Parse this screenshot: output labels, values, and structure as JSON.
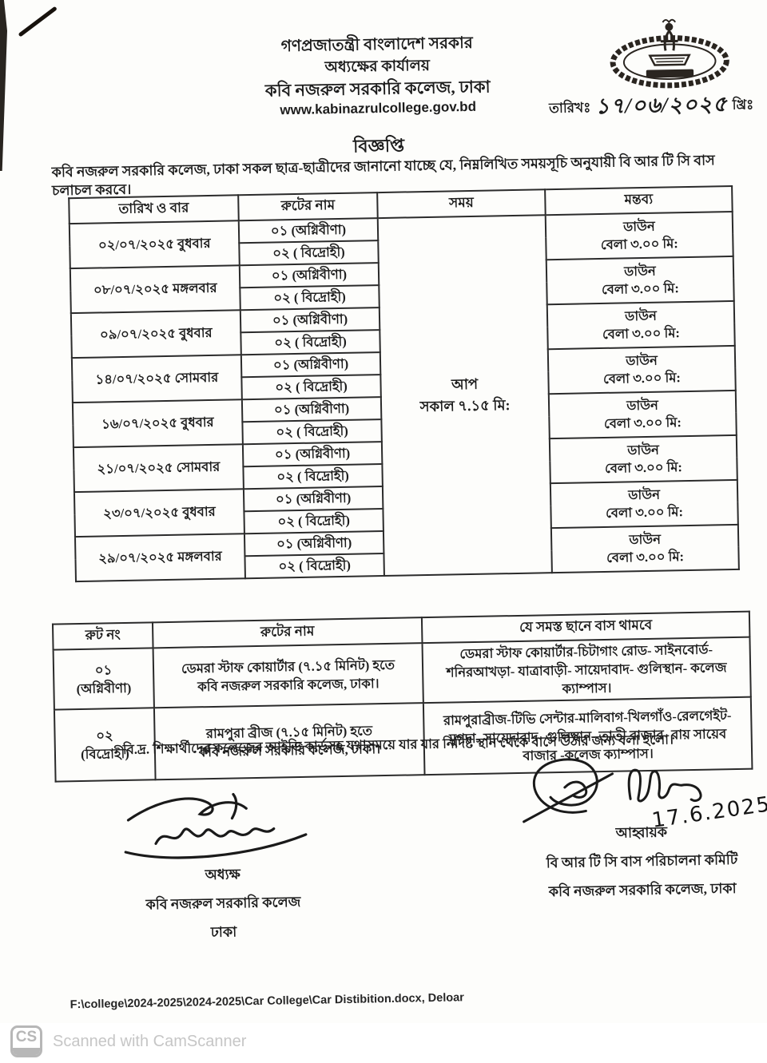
{
  "header": {
    "line1": "গণপ্রজাতন্ত্রী বাংলাদেশ সরকার",
    "line2": "অধ্যক্ষের কার্যালয়",
    "line3": "কবি নজরুল সরকারি কলেজ, ঢাকা",
    "website": "www.kabinazrulcollege.gov.bd",
    "emblem": "college-seal",
    "date_label": "তারিখঃ",
    "date_value": "১৭/০৬/২০২৫",
    "date_suffix": "খ্রিঃ"
  },
  "notice": {
    "title": "বিজ্ঞপ্তি",
    "intro": "কবি নজরুল সরকারি কলেজ, ঢাকা সকল ছাত্র-ছাত্রীদের জানানো যাচ্ছে যে, নিম্নলিখিত সময়সূচি অনুযায়ী বি আর টি সি বাস চলাচল করবে।"
  },
  "schedule_table": {
    "headers": [
      "তারিখ ও বার",
      "রুটের নাম",
      "সময়",
      "মন্তব্য"
    ],
    "time_lines": [
      "আপ",
      "সকাল ৭.১৫ মি:"
    ],
    "rows": [
      {
        "date": "০২/০৭/২০২৫ বুধবার",
        "routes": [
          "০১ (অগ্নিবীণা)",
          "০২ ( বিদ্রোহী)"
        ],
        "remark_lines": [
          "ডাউন",
          "বেলা ৩.০০ মি:"
        ]
      },
      {
        "date": "০৮/০৭/২০২৫ মঙ্গলবার",
        "routes": [
          "০১ (অগ্নিবীণা)",
          "০২ ( বিদ্রোহী)"
        ],
        "remark_lines": [
          "ডাউন",
          "বেলা ৩.০০ মি:"
        ]
      },
      {
        "date": "০৯/০৭/২০২৫ বুধবার",
        "routes": [
          "০১ (অগ্নিবীণা)",
          "০২ ( বিদ্রোহী)"
        ],
        "remark_lines": [
          "ডাউন",
          "বেলা ৩.০০ মি:"
        ]
      },
      {
        "date": "১৪/০৭/২০২৫ সোমবার",
        "routes": [
          "০১ (অগ্নিবীণা)",
          "০২ ( বিদ্রোহী)"
        ],
        "remark_lines": [
          "ডাউন",
          "বেলা ৩.০০ মি:"
        ]
      },
      {
        "date": "১৬/০৭/২০২৫ বুধবার",
        "routes": [
          "০১ (অগ্নিবীণা)",
          "০২ ( বিদ্রোহী)"
        ],
        "remark_lines": [
          "ডাউন",
          "বেলা ৩.০০ মি:"
        ]
      },
      {
        "date": "২১/০৭/২০২৫ সোমবার",
        "routes": [
          "০১ (অগ্নিবীণা)",
          "০২ ( বিদ্রোহী)"
        ],
        "remark_lines": [
          "ডাউন",
          "বেলা ৩.০০ মি:"
        ]
      },
      {
        "date": "২৩/০৭/২০২৫ বুধবার",
        "routes": [
          "০১ (অগ্নিবীণা)",
          "০২ ( বিদ্রোহী)"
        ],
        "remark_lines": [
          "ডাউন",
          "বেলা ৩.০০ মি:"
        ]
      },
      {
        "date": "২৯/০৭/২০২৫ মঙ্গলবার",
        "routes": [
          "০১ (অগ্নিবীণা)",
          "০২ ( বিদ্রোহী)"
        ],
        "remark_lines": [
          "ডাউন",
          "বেলা ৩.০০ মি:"
        ]
      }
    ]
  },
  "route_table": {
    "headers": [
      "রুট নং",
      "রুটের নাম",
      "যে সমস্ত ছানে বাস থামবে"
    ],
    "rows": [
      {
        "no_lines": [
          "০১",
          "(অগ্নিবীণা)"
        ],
        "name_lines": [
          "ডেমরা স্টাফ কোয়ার্টার (৭.১৫ মিনিট) হতে",
          "কবি নজরুল সরকারি কলেজ, ঢাকা।"
        ],
        "stops": "ডেমরা স্টাফ কোয়ার্টার-চিটাগাং রোড- সাইনবোর্ড- শনিরআখড়া- যাত্রাবাড়ী- সায়েদাবাদ- গুলিস্থান- কলেজ ক্যাম্পাস।"
      },
      {
        "no_lines": [
          "০২",
          "(বিদ্রোহী)"
        ],
        "name_lines": [
          "রামপুরা ব্রীজ (৭.১৫ মিনিট) হতে",
          "কবি নজরুল সরকারি কলেজ, ঢাকা।"
        ],
        "stops": "রামপুরাব্রীজ-টিভি সেন্টার-মালিবাগ-খিলগাঁও-রেলগেইট- মুগদা- সায়েদাবাদ- গুলিস্থান- তাতী বাজার- রায় সায়েব বাজার -কলেজ ক্যাম্পাস।"
      }
    ]
  },
  "note": "বি.দ্র. শিক্ষার্থীদের কলেজের আইডি কার্ডসহ যথাসময়ে যার যার নিদিষ্ট স্থান থেকে বাসে উঠার জন্য বলা হলো।",
  "signatures": {
    "left": {
      "role": "অধ্যক্ষ",
      "org": "কবি নজরুল সরকারি কলেজ",
      "place": "ঢাকা"
    },
    "right": {
      "handwritten_date": "17.6.2025",
      "role": "আহ্বায়ক",
      "org": "বি আর টি সি বাস পরিচালনা কমিটি",
      "place": "কবি নজরুল সরকারি কলেজ, ঢাকা"
    }
  },
  "footer_path": "F:\\college\\2024-2025\\2024-2025\\Car College\\Car Distibition.docx, Deloar",
  "camscanner": {
    "logo_text": "CS",
    "caption": "Scanned with CamScanner"
  }
}
